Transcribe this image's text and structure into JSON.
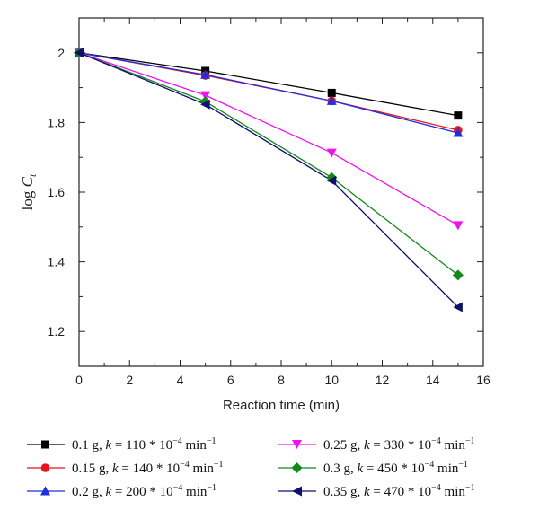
{
  "chart_data": {
    "type": "line",
    "xlabel": "Reaction time (min)",
    "ylabel_main": "log ",
    "ylabel_var": "C",
    "ylabel_sub": "t",
    "xlim": [
      0,
      16
    ],
    "ylim": [
      1.1,
      2.1
    ],
    "xticks": [
      0,
      2,
      4,
      6,
      8,
      10,
      12,
      14,
      16
    ],
    "yticks": [
      1.2,
      1.4,
      1.6,
      1.8,
      2.0
    ],
    "xtick_labels": [
      "0",
      "2",
      "4",
      "6",
      "8",
      "10",
      "12",
      "14",
      "16"
    ],
    "ytick_labels": [
      "1.2",
      "1.4",
      "1.6",
      "1.8",
      "2"
    ],
    "grid": false,
    "legend_position": "bottom",
    "x": [
      0,
      5,
      10,
      15
    ],
    "series": [
      {
        "name": "0.1 g, k = 110 * 10−4 min−1",
        "mass": "0.1 g",
        "k_value": "110",
        "color": "#000000",
        "marker": "square",
        "values": [
          2.0,
          1.948,
          1.885,
          1.82
        ]
      },
      {
        "name": "0.15 g, k = 140 * 10−4 min−1",
        "mass": "0.15 g",
        "k_value": "140",
        "color": "#e8141b",
        "marker": "circle",
        "values": [
          2.0,
          1.935,
          1.862,
          1.778
        ]
      },
      {
        "name": "0.2 g, k = 200 * 10−4 min−1",
        "mass": "0.2 g",
        "k_value": "200",
        "color": "#1f2ee0",
        "marker": "triangle-up",
        "values": [
          2.0,
          1.937,
          1.862,
          1.77
        ]
      },
      {
        "name": "0.25 g, k = 330 * 10−4 min−1",
        "mass": "0.25 g",
        "k_value": "330",
        "color": "#f012f0",
        "marker": "triangle-down",
        "values": [
          2.0,
          1.878,
          1.713,
          1.505
        ]
      },
      {
        "name": "0.3 g, k = 450 * 10−4 min−1",
        "mass": "0.3 g",
        "k_value": "450",
        "color": "#118a1a",
        "marker": "diamond",
        "values": [
          2.0,
          1.86,
          1.642,
          1.362
        ]
      },
      {
        "name": "0.35 g, k = 470 * 10−4 min−1",
        "mass": "0.35 g",
        "k_value": "470",
        "color": "#10106e",
        "marker": "triangle-left",
        "values": [
          2.0,
          1.852,
          1.633,
          1.27
        ]
      }
    ],
    "legend_text": {
      "k_var": "k",
      "eq": " = ",
      "mult": " * 10",
      "exp": "−4",
      "unit": " min",
      "unit_exp": "−1",
      "sep": ", "
    }
  }
}
